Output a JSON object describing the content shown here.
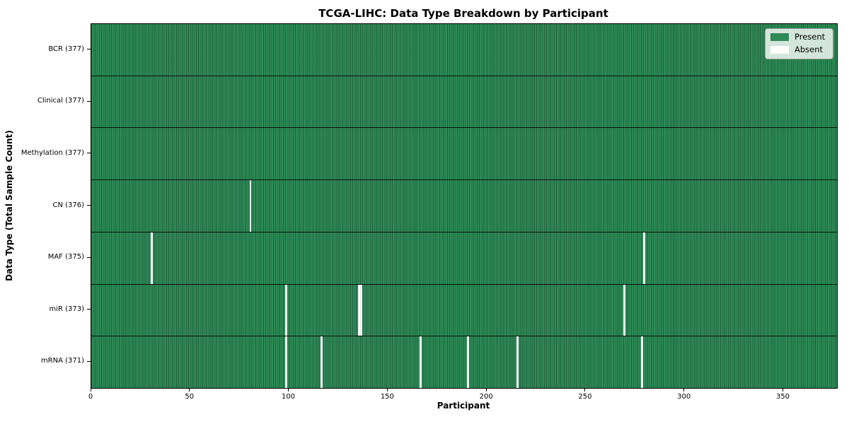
{
  "chart_data": {
    "type": "heatmap",
    "title": "TCGA-LIHC: Data Type Breakdown by Participant",
    "xlabel": "Participant",
    "ylabel": "Data Type (Total Sample Count)",
    "n_participants": 377,
    "xlim": [
      0,
      377
    ],
    "x_ticks": [
      0,
      50,
      100,
      150,
      200,
      250,
      300,
      350
    ],
    "grid": "column-separators-on",
    "legend": {
      "position": "upper right",
      "items": [
        {
          "label": "Present",
          "color": "#2e8b57"
        },
        {
          "label": "Absent",
          "color": "#ffffff"
        }
      ]
    },
    "colors": {
      "present": "#2e8b57",
      "absent": "#ffffff",
      "column_grid_line": "rgba(0,0,0,0.32)",
      "row_divider": "#000000"
    },
    "rows": [
      {
        "data_type": "BCR",
        "label": "BCR (377)",
        "present_count": 377,
        "absent_participants": []
      },
      {
        "data_type": "Clinical",
        "label": "Clinical (377)",
        "present_count": 377,
        "absent_participants": []
      },
      {
        "data_type": "Methylation",
        "label": "Methylation (377)",
        "present_count": 377,
        "absent_participants": []
      },
      {
        "data_type": "CN",
        "label": "CN (376)",
        "present_count": 376,
        "absent_participants": [
          80
        ]
      },
      {
        "data_type": "MAF",
        "label": "MAF (375)",
        "present_count": 375,
        "absent_participants": [
          30,
          279
        ]
      },
      {
        "data_type": "miR",
        "label": "miR (373)",
        "present_count": 373,
        "absent_participants": [
          98,
          135,
          136,
          269
        ]
      },
      {
        "data_type": "mRNA",
        "label": "mRNA (371)",
        "present_count": 371,
        "absent_participants": [
          98,
          116,
          166,
          190,
          215,
          278
        ]
      }
    ]
  }
}
